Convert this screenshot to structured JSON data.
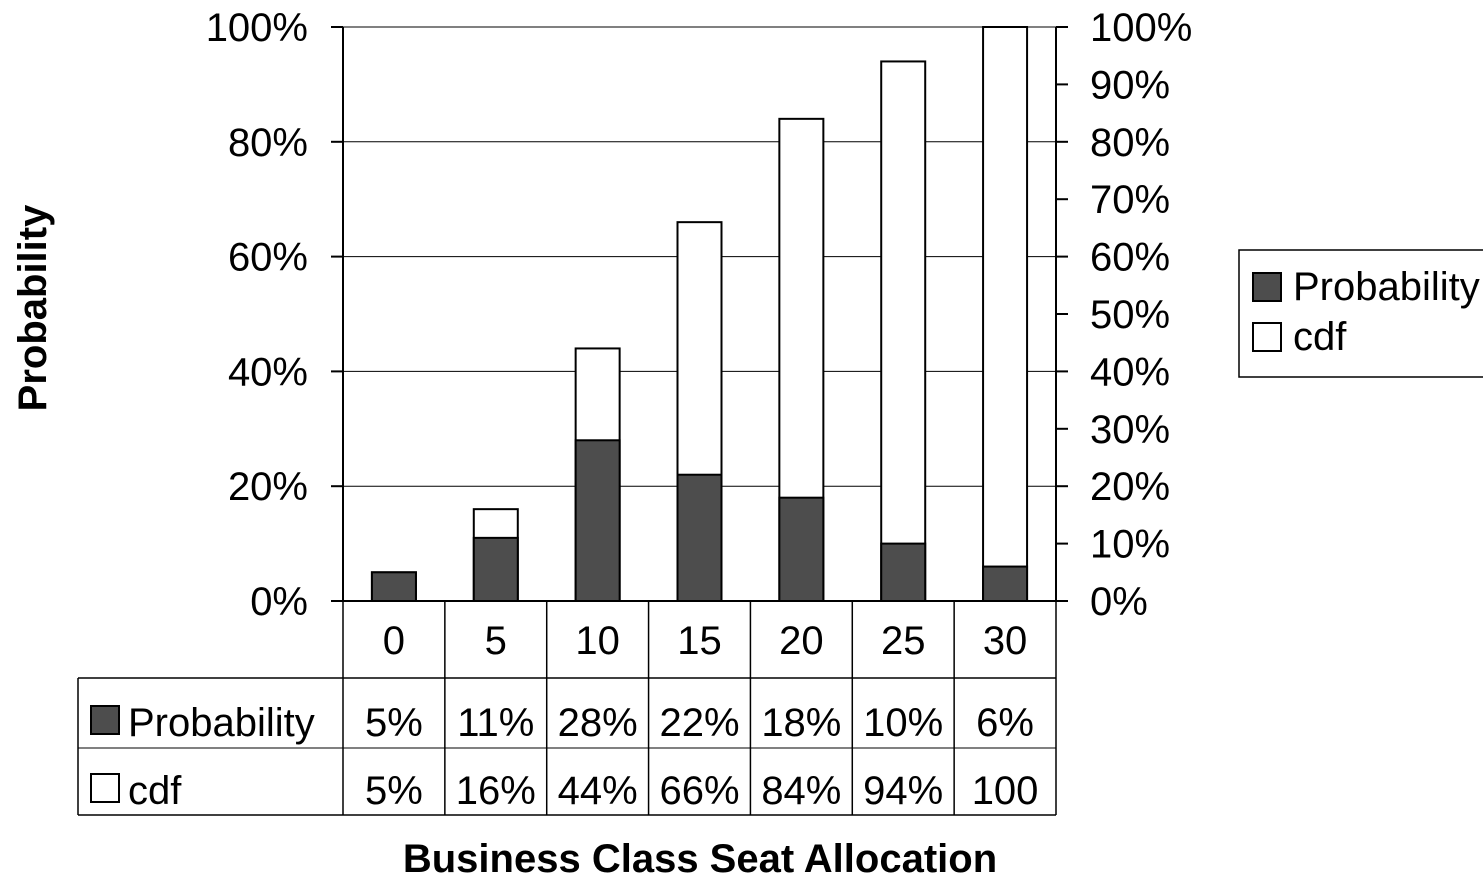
{
  "chart_data": {
    "type": "bar",
    "xlabel": "Business Class Seat Allocation",
    "ylabel": "Probability",
    "categories": [
      "0",
      "5",
      "10",
      "15",
      "20",
      "25",
      "30"
    ],
    "series": [
      {
        "name": "Probability",
        "color": "#4d4d4d",
        "values": [
          5,
          11,
          28,
          22,
          18,
          10,
          6
        ],
        "labels": [
          "5%",
          "11%",
          "28%",
          "22%",
          "18%",
          "10%",
          "6%"
        ]
      },
      {
        "name": "cdf",
        "color": "#ffffff",
        "values": [
          5,
          16,
          44,
          66,
          84,
          94,
          100
        ],
        "labels": [
          "5%",
          "16%",
          "44%",
          "66%",
          "84%",
          "94%",
          "100"
        ]
      }
    ],
    "y_left": {
      "ylim": [
        0,
        100
      ],
      "ticks": [
        "0%",
        "20%",
        "40%",
        "60%",
        "80%",
        "100%"
      ]
    },
    "y_right": {
      "ylim": [
        0,
        100
      ],
      "ticks": [
        "0%",
        "10%",
        "20%",
        "30%",
        "40%",
        "50%",
        "60%",
        "70%",
        "80%",
        "90%",
        "100%"
      ]
    },
    "grid": true,
    "legend": {
      "position": "right",
      "items": [
        "Probability",
        "cdf"
      ]
    },
    "data_table": true
  }
}
